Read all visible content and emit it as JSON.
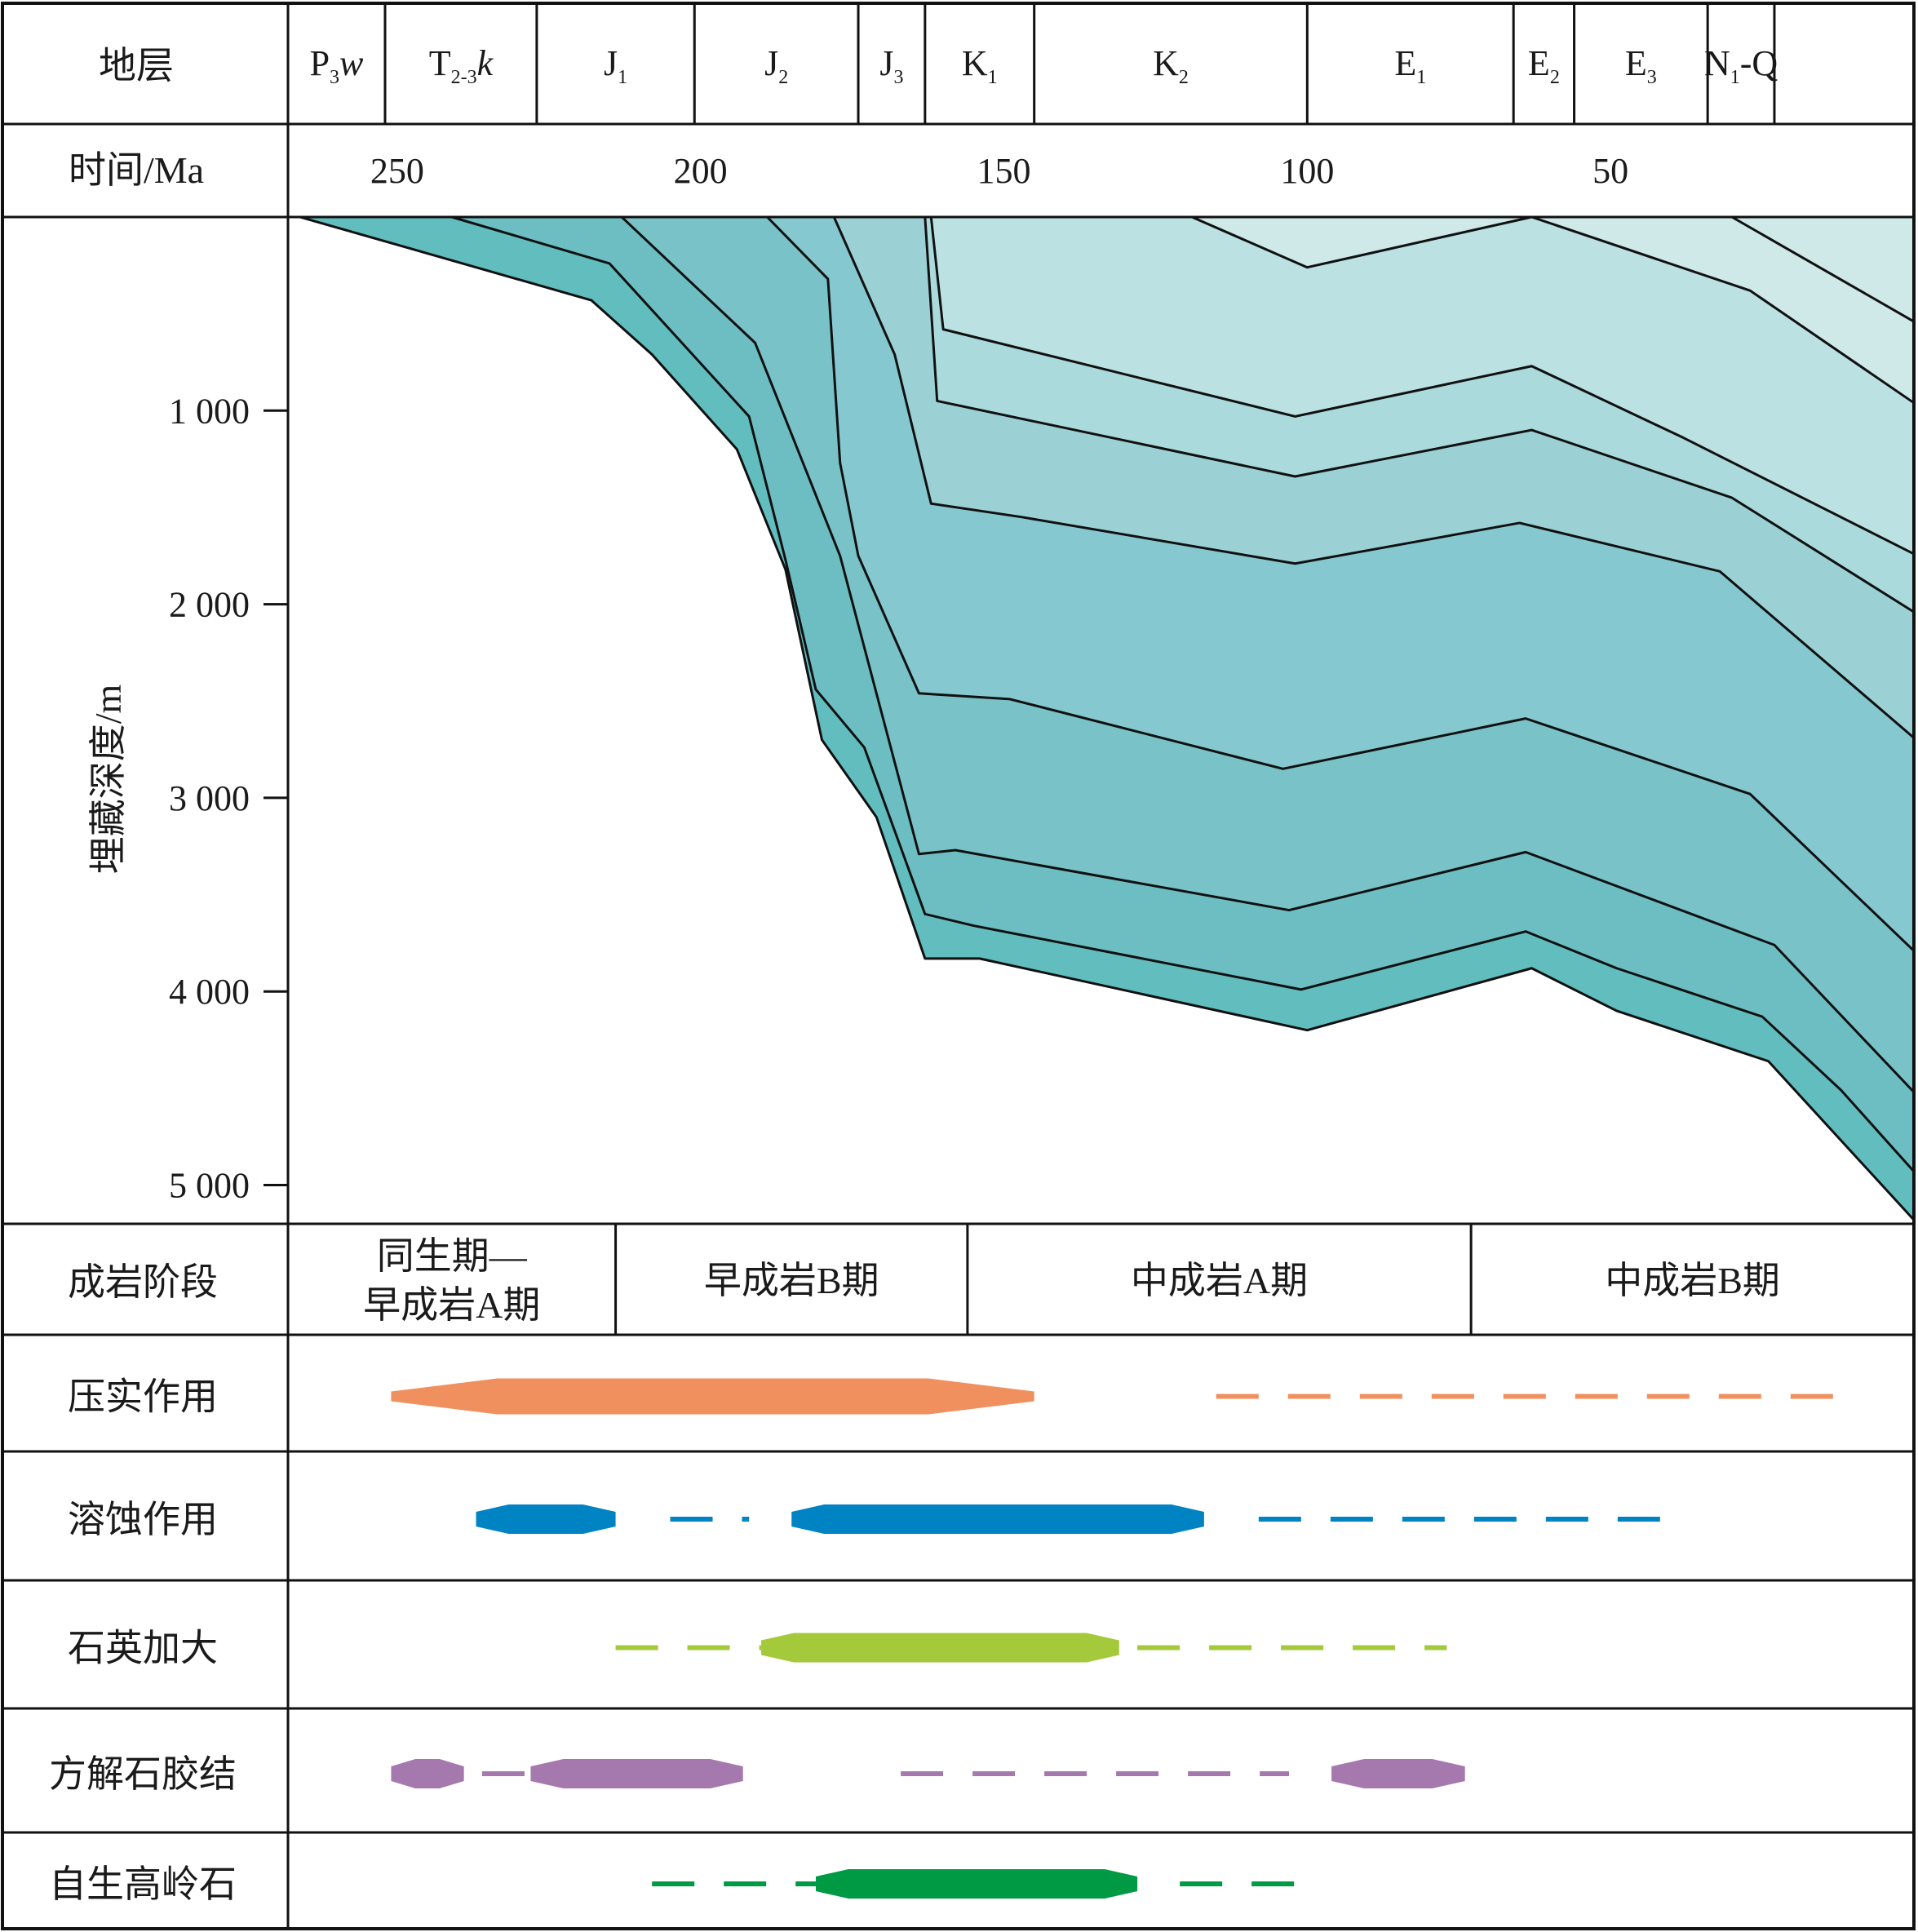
{
  "chart_data": {
    "type": "area",
    "header": {
      "strata_label": "地层",
      "time_label": "时间/Ma",
      "depth_label": "埋藏深度/m",
      "stage_label": "成岩阶段"
    },
    "strata": [
      {
        "main": "P",
        "sub": "3",
        "tail": "w",
        "italic_tail": true
      },
      {
        "main": "T",
        "sub": "2-3",
        "tail": "k",
        "italic_tail": true
      },
      {
        "main": "J",
        "sub": "1",
        "tail": ""
      },
      {
        "main": "J",
        "sub": "2",
        "tail": ""
      },
      {
        "main": "J",
        "sub": "3",
        "tail": ""
      },
      {
        "main": "K",
        "sub": "1",
        "tail": ""
      },
      {
        "main": "K",
        "sub": "2",
        "tail": ""
      },
      {
        "main": "E",
        "sub": "1",
        "tail": ""
      },
      {
        "main": "E",
        "sub": "2",
        "tail": ""
      },
      {
        "main": "E",
        "sub": "3",
        "tail": ""
      },
      {
        "main": "N",
        "sub": "1",
        "tail": "-Q"
      }
    ],
    "strata_boundaries_ma": [
      268,
      252,
      227,
      201,
      174,
      163,
      145,
      100,
      66,
      56,
      34,
      23,
      0
    ],
    "time_axis": {
      "min": 268,
      "max": 0,
      "ticks": [
        250,
        200,
        150,
        100,
        50
      ],
      "tick_labels": [
        "250",
        "200",
        "150",
        "100",
        "50"
      ]
    },
    "depth_axis": {
      "min": 0,
      "max": 5200,
      "ticks": [
        1000,
        2000,
        3000,
        4000,
        5000
      ],
      "tick_labels": [
        "1 000",
        "2 000",
        "3 000",
        "4 000",
        "5 000"
      ]
    },
    "fill_colors": [
      "#62BDBE",
      "#6DBEC2",
      "#78C2C8",
      "#86C8CF",
      "#9BD1D5",
      "#AADADC",
      "#BBE1E2",
      "#CFE8E8"
    ],
    "burial_lines": [
      {
        "points": [
          [
            266,
            0
          ],
          [
            218,
            430
          ],
          [
            208,
            710
          ],
          [
            194,
            1200
          ],
          [
            186,
            1820
          ],
          [
            180,
            2700
          ],
          [
            171,
            3100
          ],
          [
            163,
            3830
          ],
          [
            154,
            3830
          ],
          [
            100,
            4200
          ],
          [
            63,
            3880
          ],
          [
            49,
            4100
          ],
          [
            24,
            4360
          ],
          [
            0,
            5180
          ]
        ]
      },
      {
        "points": [
          [
            241,
            0
          ],
          [
            215,
            240
          ],
          [
            192,
            1030
          ],
          [
            186,
            1770
          ],
          [
            181,
            2440
          ],
          [
            173,
            2740
          ],
          [
            163,
            3600
          ],
          [
            155,
            3660
          ],
          [
            101,
            3990
          ],
          [
            64,
            3690
          ],
          [
            49,
            3880
          ],
          [
            25,
            4130
          ],
          [
            12,
            4510
          ],
          [
            0,
            4930
          ]
        ]
      },
      {
        "points": [
          [
            213,
            0
          ],
          [
            191,
            650
          ],
          [
            177,
            1750
          ],
          [
            164,
            3290
          ],
          [
            158,
            3270
          ],
          [
            103,
            3580
          ],
          [
            64,
            3280
          ],
          [
            23,
            3760
          ],
          [
            0,
            4520
          ]
        ]
      },
      {
        "points": [
          [
            189,
            0
          ],
          [
            179,
            320
          ],
          [
            177,
            1270
          ],
          [
            174,
            1750
          ],
          [
            164,
            2460
          ],
          [
            149,
            2490
          ],
          [
            104,
            2850
          ],
          [
            64,
            2590
          ],
          [
            27,
            2980
          ],
          [
            0,
            3790
          ]
        ]
      },
      {
        "points": [
          [
            178,
            0
          ],
          [
            168,
            710
          ],
          [
            162,
            1480
          ],
          [
            147,
            1550
          ],
          [
            102,
            1790
          ],
          [
            65,
            1580
          ],
          [
            32,
            1830
          ],
          [
            0,
            2690
          ]
        ]
      },
      {
        "points": [
          [
            163,
            0
          ],
          [
            161,
            950
          ],
          [
            102,
            1340
          ],
          [
            63,
            1100
          ],
          [
            30,
            1450
          ],
          [
            0,
            2040
          ]
        ]
      },
      {
        "points": [
          [
            162,
            0
          ],
          [
            160,
            580
          ],
          [
            102,
            1030
          ],
          [
            63,
            770
          ],
          [
            38,
            1140
          ],
          [
            0,
            1740
          ]
        ]
      },
      {
        "points": [
          [
            119,
            0
          ],
          [
            100,
            260
          ],
          [
            63,
            0
          ],
          [
            27,
            380
          ],
          [
            0,
            960
          ]
        ]
      },
      {
        "points": [
          [
            30,
            0
          ],
          [
            0,
            540
          ]
        ]
      }
    ],
    "stages": [
      {
        "label_lines": [
          "同生期—",
          "早成岩A期"
        ],
        "from": 268,
        "to": 214
      },
      {
        "label_lines": [
          "早成岩B期"
        ],
        "from": 214,
        "to": 156
      },
      {
        "label_lines": [
          "中成岩A期"
        ],
        "from": 156,
        "to": 73
      },
      {
        "label_lines": [
          "中成岩B期"
        ],
        "from": 73,
        "to": 0
      }
    ],
    "processes": [
      {
        "label": "压实作用",
        "color": "#F0905F",
        "strong": [
          {
            "from": 251,
            "to": 145,
            "thick": true
          }
        ],
        "weak": [
          {
            "from": 115,
            "to": 11,
            "dash": [
              52,
              36
            ]
          }
        ]
      },
      {
        "label": "溶蚀作用",
        "color": "#0083C3",
        "strong": [
          {
            "from": 237,
            "to": 214
          },
          {
            "from": 185,
            "to": 117
          }
        ],
        "weak": [
          {
            "from": 205,
            "to": 192,
            "dash": [
              52,
              36,
              10,
              36
            ]
          },
          {
            "from": 108,
            "to": 41,
            "dash": [
              52,
              36
            ]
          }
        ]
      },
      {
        "label": "石英加大",
        "color": "#A4C93A",
        "strong": [
          {
            "from": 190,
            "to": 131
          }
        ],
        "weak": [
          {
            "from": 214,
            "to": 190,
            "dash": [
              52,
              36
            ]
          },
          {
            "from": 128,
            "to": 77,
            "dash": [
              52,
              36
            ]
          }
        ]
      },
      {
        "label": "方解石胶结",
        "color": "#A679AE",
        "strong": [
          {
            "from": 251,
            "to": 239
          },
          {
            "from": 228,
            "to": 193
          },
          {
            "from": 96,
            "to": 74
          }
        ],
        "weak": [
          {
            "from": 236,
            "to": 228,
            "dash": [
              52,
              36
            ]
          },
          {
            "from": 167,
            "to": 103,
            "dash": [
              52,
              36
            ]
          }
        ]
      },
      {
        "label": "自生高岭石",
        "color": "#009A44",
        "strong": [
          {
            "from": 181,
            "to": 128
          }
        ],
        "weak": [
          {
            "from": 208,
            "to": 181,
            "dash": [
              52,
              36
            ]
          },
          {
            "from": 121,
            "to": 101,
            "dash": [
              52,
              36
            ]
          }
        ]
      }
    ]
  }
}
